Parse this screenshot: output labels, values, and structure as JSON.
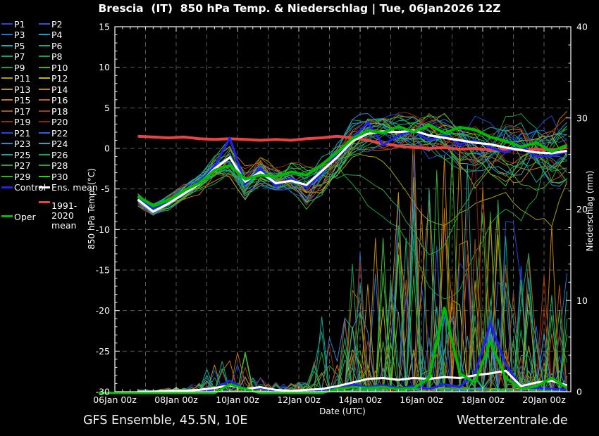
{
  "header": {
    "title": "Brescia  (IT)  850 hPa Temp. & Niederschlag | Tue, 06Jan2026 12Z"
  },
  "footer": {
    "left": "GFS Ensemble, 45.5N, 10E",
    "right": "Wetterzentrale.de"
  },
  "legend": {
    "special": [
      {
        "label": "Control",
        "color": "#2222ee",
        "col": 0,
        "row": 15,
        "wrap": false
      },
      {
        "label": "Ens. mean",
        "color": "#ffffff",
        "col": 1,
        "row": 15,
        "wrap": false
      },
      {
        "label": "1991-2020 mean",
        "color": "#e84444",
        "col": 1,
        "row": 16.7,
        "wrap": true
      },
      {
        "label": "Oper",
        "color": "#00bb00",
        "col": 0,
        "row": 17.7,
        "wrap": false
      }
    ]
  },
  "chart_data": {
    "type": "line",
    "title": "Brescia (IT) 850 hPa Temp. & Niederschlag | Tue, 06Jan2026 12Z",
    "x_axis": {
      "label": "Date (UTC)",
      "origin": "06Jan2026 00z",
      "tick_hours": [
        0,
        48,
        96,
        144,
        192,
        240,
        288,
        336
      ],
      "tick_labels": [
        "06Jan 00z",
        "08Jan 00z",
        "10Jan 00z",
        "12Jan 00z",
        "14Jan 00z",
        "16Jan 00z",
        "18Jan 00z",
        "20Jan 00z"
      ],
      "minor_step_hours": 6,
      "range_hours": [
        0,
        357
      ],
      "day_gridlines": true
    },
    "y_left": {
      "label": "850 hPa Temp. (°C)",
      "range": [
        -30,
        15
      ],
      "tick_step": 5,
      "minor_step": 1,
      "gridlines": true
    },
    "y_right": {
      "label": "Niederschlag (mm)",
      "range": [
        0,
        40
      ],
      "tick_step": 10,
      "minor_step": 2
    },
    "hours": [
      18,
      30,
      42,
      54,
      66,
      78,
      90,
      102,
      114,
      126,
      138,
      150,
      162,
      174,
      186,
      198,
      210,
      222,
      234,
      246,
      258,
      270,
      282,
      294,
      306,
      318,
      330,
      342,
      354
    ],
    "temperature": {
      "ens_mean": [
        -6.3,
        -7.8,
        -6.8,
        -5.6,
        -4.4,
        -2.5,
        -1.1,
        -4.1,
        -2.9,
        -4.3,
        -4.0,
        -4.5,
        -2.8,
        -1.1,
        0.9,
        1.8,
        2.1,
        2.0,
        2.2,
        1.6,
        1.3,
        1.0,
        0.7,
        0.5,
        0.1,
        -0.2,
        -0.5,
        -0.6,
        -0.3
      ],
      "control": [
        -6.0,
        -7.4,
        -6.5,
        -5.4,
        -4.2,
        -2.2,
        1.3,
        -4.4,
        -2.5,
        -4.7,
        -3.7,
        -4.8,
        -3.1,
        -0.6,
        1.2,
        3.2,
        0.4,
        1.6,
        2.2,
        1.0,
        1.6,
        0.5,
        1.0,
        0.1,
        -0.5,
        0.3,
        -1.0,
        -0.9,
        -0.4
      ],
      "oper": [
        -5.9,
        -7.1,
        -6.4,
        -5.2,
        -4.3,
        -2.7,
        -2.1,
        -3.8,
        -3.3,
        -3.5,
        -2.9,
        -3.3,
        -2.0,
        -0.5,
        1.2,
        2.2,
        1.9,
        2.7,
        2.0,
        2.9,
        1.9,
        2.6,
        2.3,
        1.4,
        0.9,
        0.2,
        0.7,
        -0.4,
        0.4
      ],
      "climate_1991_2020": [
        1.5,
        1.4,
        1.3,
        1.4,
        1.2,
        1.1,
        1.2,
        1.1,
        1.0,
        1.1,
        1.0,
        1.2,
        1.3,
        1.5,
        1.3,
        1.0,
        0.6,
        0.3,
        0.1,
        0.0,
        0.1,
        -0.1,
        0.0,
        -0.2,
        -0.1,
        -0.2,
        -0.1,
        -0.2,
        0.1
      ],
      "member_spread": [
        0.9,
        1.1,
        1.0,
        1.0,
        1.2,
        1.6,
        2.4,
        2.2,
        1.9,
        2.1,
        2.4,
        2.8,
        2.6,
        2.4,
        2.4,
        2.3,
        2.2,
        2.4,
        2.6,
        2.8,
        3.1,
        3.4,
        3.8,
        4.1,
        4.4,
        4.7,
        5.0,
        5.2,
        5.3
      ],
      "outlier_dips": [
        [
          8,
          252,
          19,
          55
        ],
        [
          10,
          258,
          9,
          70
        ],
        [
          26,
          240,
          12,
          50
        ]
      ]
    },
    "precipitation": {
      "ens_mean": [
        0,
        0,
        0.1,
        0.1,
        0.2,
        0.4,
        0.7,
        0.3,
        0.5,
        0.2,
        0.1,
        0.2,
        0.3,
        0.6,
        1.0,
        1.4,
        1.5,
        1.3,
        1.5,
        1.4,
        1.6,
        1.5,
        1.8,
        2.0,
        2.3,
        0.6,
        1.0,
        1.2,
        0.7
      ],
      "control": [
        0,
        0,
        0,
        0,
        0,
        0.3,
        1.2,
        0.2,
        0.4,
        0.1,
        0,
        0.1,
        0.2,
        0.5,
        0.8,
        0.5,
        0.7,
        0.4,
        0.6,
        0.3,
        0.8,
        0.5,
        2.0,
        7.5,
        3.0,
        0.5,
        0.4,
        0.3,
        0.2
      ],
      "oper": [
        0,
        0,
        0,
        0,
        0,
        0.2,
        0.8,
        0.3,
        0.2,
        0,
        0,
        0,
        0.1,
        0.3,
        0.5,
        0.4,
        0.5,
        0.3,
        0.4,
        1.5,
        9.2,
        2.0,
        1.0,
        5.5,
        1.5,
        0.3,
        0.6,
        1.5,
        0.4
      ],
      "member_spike_envelope": [
        0.05,
        0.05,
        0.1,
        0.1,
        0.2,
        0.9,
        1.0,
        0.9,
        0.3,
        0.2,
        0.2,
        0.3,
        1.5,
        0.8,
        2.5,
        3.5,
        4.0,
        4.5,
        5.0,
        5.5,
        5.0,
        5.5,
        5.0,
        4.5,
        4.0,
        3.5,
        3.0,
        3.5,
        3.0
      ],
      "featured_member_spikes": [
        [
          15,
          234,
          29
        ],
        [
          13,
          246,
          21
        ],
        [
          18,
          282,
          16.5
        ],
        [
          16,
          276,
          15
        ],
        [
          4,
          324,
          12.5
        ],
        [
          21,
          300,
          12
        ],
        [
          21,
          306,
          11
        ],
        [
          24,
          162,
          8.2
        ],
        [
          29,
          222,
          15
        ],
        [
          7,
          186,
          14
        ],
        [
          2,
          348,
          6
        ],
        [
          2,
          354,
          13
        ],
        [
          27,
          354,
          8
        ],
        [
          14,
          90,
          3.4
        ],
        [
          9,
          102,
          4.2
        ],
        [
          1,
          96,
          3.0
        ]
      ]
    },
    "members": {
      "count": 30,
      "labels": [
        "P1",
        "P2",
        "P3",
        "P4",
        "P5",
        "P6",
        "P7",
        "P8",
        "P9",
        "P10",
        "P11",
        "P12",
        "P13",
        "P14",
        "P15",
        "P16",
        "P17",
        "P18",
        "P19",
        "P20",
        "P21",
        "P22",
        "P23",
        "P24",
        "P25",
        "P26",
        "P27",
        "P28",
        "P29",
        "P30"
      ],
      "colors": [
        "#2343dc",
        "#2156d6",
        "#2a70c8",
        "#2f93c8",
        "#12b2b2",
        "#0eae8a",
        "#0ca478",
        "#10a256",
        "#18a232",
        "#2eb82e",
        "#a2a20a",
        "#bdb911",
        "#bd920c",
        "#c08508",
        "#c7790f",
        "#bd6410",
        "#b05014",
        "#a03c14",
        "#962a1a",
        "#8e2222",
        "#2148d8",
        "#2a60d2",
        "#2f86cc",
        "#2fa4c8",
        "#16a89a",
        "#12a46c",
        "#28a24c",
        "#1ea636",
        "#2cb42c",
        "#38c438"
      ]
    },
    "styles": {
      "ens_mean": "#ffffff",
      "control": "#2222ee",
      "oper": "#00bb00",
      "climate": "#e84444",
      "grid": "#5a5a5a",
      "axis": "#e8e8e8",
      "background": "#000000",
      "text": "#ffffff"
    }
  }
}
